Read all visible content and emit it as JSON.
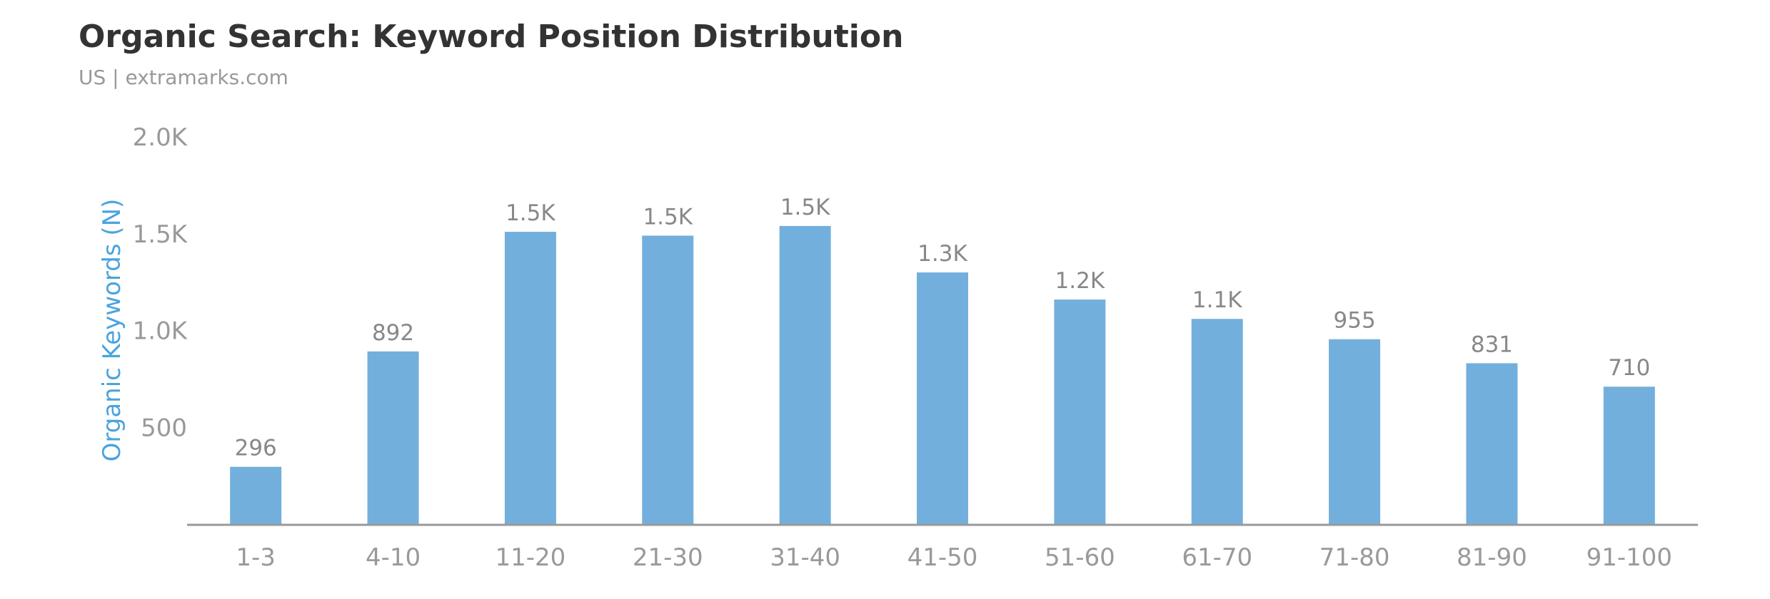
{
  "header": {
    "title": "Organic Search: Keyword Position Distribution",
    "subtitle": "US | extramarks.com"
  },
  "chart_data": {
    "type": "bar",
    "title": "Organic Search: Keyword Position Distribution",
    "subtitle": "US | extramarks.com",
    "xlabel": "",
    "ylabel": "Organic Keywords (N)",
    "categories": [
      "1-3",
      "4-10",
      "11-20",
      "21-30",
      "31-40",
      "41-50",
      "51-60",
      "61-70",
      "71-80",
      "81-90",
      "91-100"
    ],
    "values": [
      296,
      892,
      1510,
      1490,
      1540,
      1300,
      1160,
      1060,
      955,
      831,
      710
    ],
    "data_labels": [
      "296",
      "892",
      "1.5K",
      "1.5K",
      "1.5K",
      "1.3K",
      "1.2K",
      "1.1K",
      "955",
      "831",
      "710"
    ],
    "ylim": [
      0,
      2000
    ],
    "y_ticks": [
      500,
      1000,
      1500,
      2000
    ],
    "y_tick_labels": [
      "500",
      "1.0K",
      "1.5K",
      "2.0K"
    ],
    "grid": false,
    "legend": "none",
    "colors": {
      "bar": "#73afdc",
      "axis_title": "#4aa3df",
      "tick_text": "#999999",
      "label_text": "#888888",
      "baseline": "#999999"
    }
  }
}
